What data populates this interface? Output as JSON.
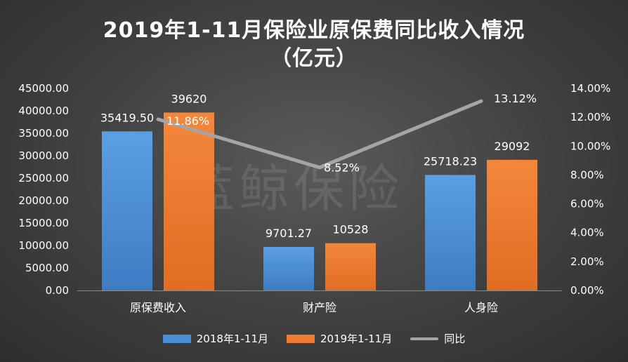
{
  "title_line1": "2019年1-11月保险业原保费同比收入情况",
  "title_line2": "（亿元）",
  "watermark": "蓝鲸保险",
  "chart_data": {
    "type": "bar",
    "categories": [
      "原保费收入",
      "财产险",
      "人身险"
    ],
    "series": [
      {
        "name": "2018年1-11月",
        "values": [
          35419.5,
          9701.27,
          25718.23
        ],
        "labels": [
          "35419.50",
          "9701.27",
          "25718.23"
        ],
        "color": "#4a8fd6"
      },
      {
        "name": "2019年1-11月",
        "values": [
          39620,
          10528,
          29092
        ],
        "labels": [
          "39620",
          "10528",
          "29092"
        ],
        "color": "#ee7d31"
      }
    ],
    "line_series": {
      "name": "同比",
      "values": [
        11.86,
        8.52,
        13.12
      ],
      "labels": [
        "11.86%",
        "8.52%",
        "13.12%"
      ],
      "color": "#a5a5a5"
    },
    "ylim": [
      0,
      45000
    ],
    "y_ticks": [
      "0.00",
      "5000.00",
      "10000.00",
      "15000.00",
      "20000.00",
      "25000.00",
      "30000.00",
      "35000.00",
      "40000.00",
      "45000.00"
    ],
    "y2lim": [
      0,
      14
    ],
    "y2_ticks": [
      "0.00%",
      "2.00%",
      "4.00%",
      "6.00%",
      "8.00%",
      "10.00%",
      "12.00%",
      "14.00%"
    ],
    "grid": false,
    "legend_position": "bottom"
  }
}
